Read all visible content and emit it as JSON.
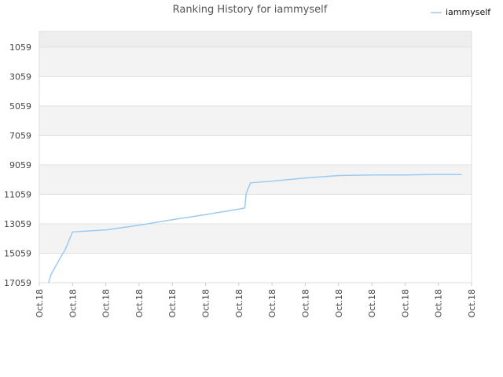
{
  "chart_data": {
    "type": "line",
    "title": "Ranking History for iammyself",
    "legend": {
      "position": "top-right",
      "entries": [
        "iammyself"
      ]
    },
    "ylim": [
      17059,
      0
    ],
    "y_inverted": true,
    "y_ticks": [
      1059,
      3059,
      5059,
      7059,
      9059,
      11059,
      13059,
      15059,
      17059
    ],
    "x_ticks": [
      "Oct.18",
      "Oct.18",
      "Oct.18",
      "Oct.18",
      "Oct.18",
      "Oct.18",
      "Oct.18",
      "Oct.18",
      "Oct.18",
      "Oct.18",
      "Oct.18",
      "Oct.18",
      "Oct.18",
      "Oct.18"
    ],
    "grid": true,
    "colors": {
      "line": "#9ccaf0",
      "band_dark": "#f3f3f3",
      "band_light": "#ffffff",
      "band_top": "#eeeeee",
      "grid": "#e2e2e2"
    },
    "series": [
      {
        "name": "iammyself",
        "x": [
          0.28,
          0.35,
          0.71,
          0.77,
          1.0,
          2.0,
          3.0,
          4.0,
          5.0,
          6.0,
          6.18,
          6.22,
          6.35,
          7.0,
          8.0,
          9.0,
          10.0,
          11.0,
          11.8,
          12.7
        ],
        "y": [
          17059,
          16500,
          15059,
          14850,
          13610,
          13470,
          13150,
          12780,
          12430,
          12060,
          11990,
          11000,
          10280,
          10160,
          9950,
          9780,
          9740,
          9740,
          9720,
          9720
        ]
      }
    ]
  }
}
